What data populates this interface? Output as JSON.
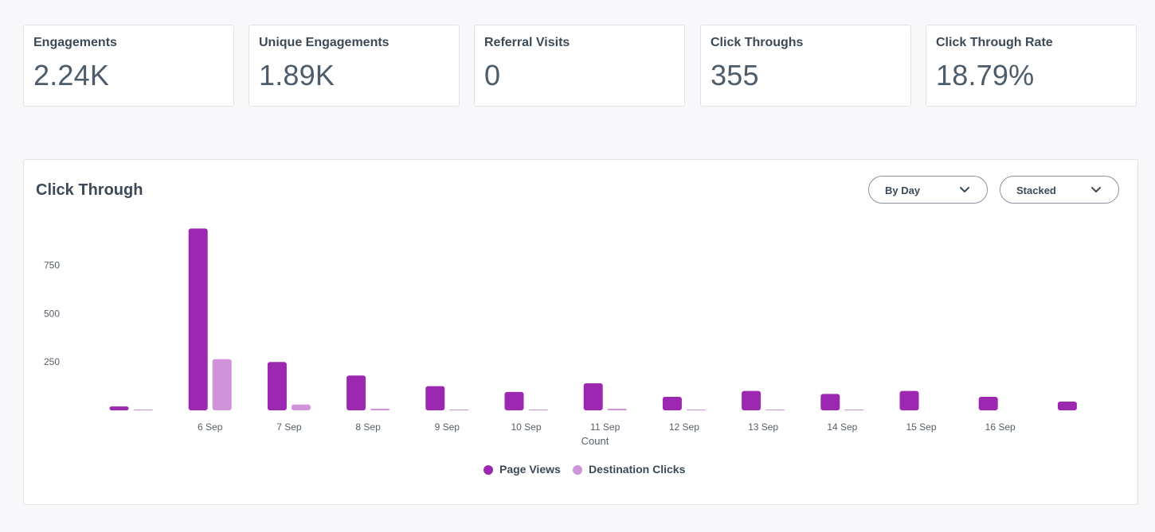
{
  "kpis": [
    {
      "label": "Engagements",
      "value": "2.24K"
    },
    {
      "label": "Unique Engagements",
      "value": "1.89K"
    },
    {
      "label": "Referral Visits",
      "value": "0"
    },
    {
      "label": "Click Throughs",
      "value": "355"
    },
    {
      "label": "Click Through Rate",
      "value": "18.79%"
    }
  ],
  "panel": {
    "title": "Click Through",
    "group_by": {
      "selected": "By Day",
      "icon": "chevron-down-icon"
    },
    "mode": {
      "selected": "Stacked",
      "icon": "chevron-down-icon"
    }
  },
  "colors": {
    "page_views": "#9c27b0",
    "destination_clicks": "#ce93d8"
  },
  "chart_data": {
    "type": "bar",
    "categories": [
      "",
      "6 Sep",
      "7 Sep",
      "8 Sep",
      "9 Sep",
      "10 Sep",
      "11 Sep",
      "12 Sep",
      "13 Sep",
      "14 Sep",
      "15 Sep",
      "16 Sep",
      ""
    ],
    "series": [
      {
        "name": "Page Views",
        "values": [
          20,
          940,
          250,
          180,
          125,
          95,
          140,
          70,
          100,
          85,
          100,
          70,
          45
        ]
      },
      {
        "name": "Destination Clicks",
        "values": [
          3,
          265,
          30,
          8,
          4,
          3,
          8,
          3,
          3,
          3,
          0,
          0,
          0
        ]
      }
    ],
    "yticks": [
      250,
      500,
      750
    ],
    "ylim": [
      0,
      950
    ],
    "xlabel": "Count",
    "ylabel": "",
    "grid": false,
    "legend": "bottom-center"
  }
}
